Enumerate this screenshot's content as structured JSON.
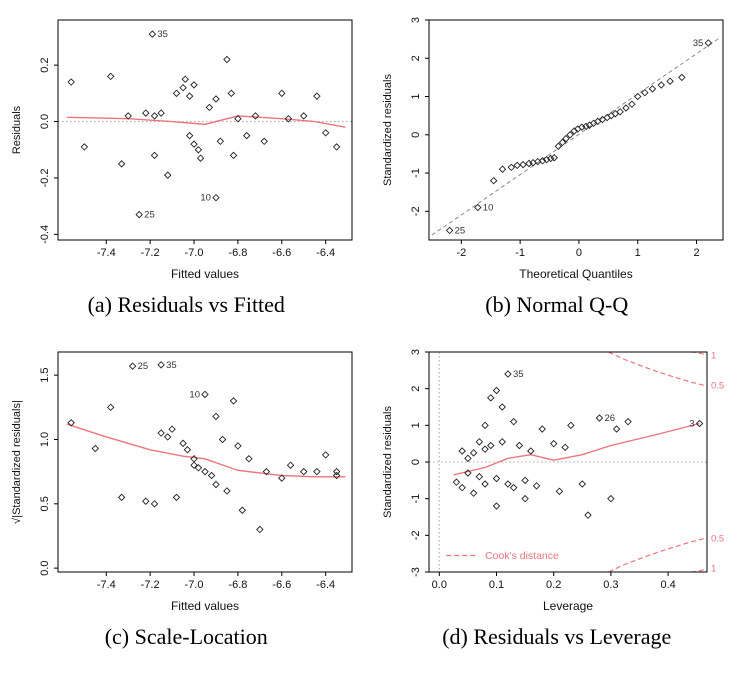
{
  "figure": {
    "captions": {
      "a": "(a) Residuals vs Fitted",
      "b": "(b) Normal Q-Q",
      "c": "(c) Scale-Location",
      "d": "(d) Residuals vs Leverage"
    }
  },
  "colors": {
    "accent": "#ee7580",
    "dotted": "#aaaaaa",
    "point": "#222222",
    "reference": "#8a8a8a"
  },
  "chart_data": [
    {
      "id": "a",
      "type": "scatter",
      "title": "Residuals vs Fitted",
      "xlabel": "Fitted values",
      "ylabel": "Residuals",
      "xlim": [
        -7.62,
        -6.28
      ],
      "ylim": [
        -0.42,
        0.36
      ],
      "xticks": {
        "values": [
          -7.4,
          -7.2,
          -7.0,
          -6.8,
          -6.6,
          -6.4
        ],
        "labels": [
          "-7.4",
          "-7.2",
          "-7.0",
          "-6.8",
          "-6.6",
          "-6.4"
        ]
      },
      "yticks": {
        "values": [
          -0.4,
          -0.2,
          0.0,
          0.2
        ],
        "labels": [
          "-0.4",
          "-0.2",
          "0.0",
          "0.2"
        ]
      },
      "zero_h": 0,
      "points": [
        [
          -7.56,
          0.14
        ],
        [
          -7.5,
          -0.09
        ],
        [
          -7.38,
          0.16
        ],
        [
          -7.33,
          -0.15
        ],
        [
          -7.3,
          0.02
        ],
        [
          -7.22,
          0.03
        ],
        [
          -7.18,
          0.02
        ],
        [
          -7.15,
          0.03
        ],
        [
          -7.18,
          -0.12
        ],
        [
          -7.12,
          -0.19
        ],
        [
          -7.08,
          0.1
        ],
        [
          -7.05,
          0.12
        ],
        [
          -7.04,
          0.15
        ],
        [
          -7.02,
          0.09
        ],
        [
          -7.0,
          0.13
        ],
        [
          -7.02,
          -0.05
        ],
        [
          -7.0,
          -0.08
        ],
        [
          -6.98,
          -0.1
        ],
        [
          -6.97,
          -0.13
        ],
        [
          -6.93,
          0.05
        ],
        [
          -6.9,
          0.08
        ],
        [
          -6.88,
          -0.07
        ],
        [
          -6.85,
          0.22
        ],
        [
          -6.83,
          0.1
        ],
        [
          -6.82,
          -0.12
        ],
        [
          -6.8,
          0.01
        ],
        [
          -6.76,
          -0.05
        ],
        [
          -6.72,
          0.02
        ],
        [
          -6.68,
          -0.07
        ],
        [
          -6.6,
          0.1
        ],
        [
          -6.57,
          0.01
        ],
        [
          -6.5,
          0.02
        ],
        [
          -6.44,
          0.09
        ],
        [
          -6.4,
          -0.04
        ],
        [
          -6.35,
          -0.09
        ]
      ],
      "labeled": [
        {
          "label": "35",
          "x": -7.19,
          "y": 0.31,
          "side": "right"
        },
        {
          "label": "25",
          "x": -7.25,
          "y": -0.33,
          "side": "right"
        },
        {
          "label": "10",
          "x": -6.9,
          "y": -0.27,
          "side": "left"
        }
      ],
      "smoother": [
        [
          -7.58,
          0.015
        ],
        [
          -7.3,
          0.01
        ],
        [
          -7.1,
          0.0
        ],
        [
          -6.95,
          -0.01
        ],
        [
          -6.8,
          0.02
        ],
        [
          -6.6,
          0.01
        ],
        [
          -6.45,
          0.0
        ],
        [
          -6.31,
          -0.02
        ]
      ]
    },
    {
      "id": "b",
      "type": "scatter",
      "title": "Normal Q-Q",
      "xlabel": "Theoretical Quantiles",
      "ylabel": "Standardized residuals",
      "xlim": [
        -2.55,
        2.45
      ],
      "ylim": [
        -2.75,
        3.0
      ],
      "xticks": {
        "values": [
          -2,
          -1,
          0,
          1,
          2
        ],
        "labels": [
          "-2",
          "-1",
          "0",
          "1",
          "2"
        ]
      },
      "yticks": {
        "values": [
          -2,
          -1,
          0,
          1,
          2,
          3
        ],
        "labels": [
          "-2",
          "-1",
          "0",
          "1",
          "2",
          "3"
        ]
      },
      "ref_line": [
        [
          -2.5,
          -2.62
        ],
        [
          2.38,
          2.52
        ]
      ],
      "points": [
        [
          -1.45,
          -1.2
        ],
        [
          -1.3,
          -0.9
        ],
        [
          -1.15,
          -0.85
        ],
        [
          -1.05,
          -0.8
        ],
        [
          -0.95,
          -0.78
        ],
        [
          -0.85,
          -0.75
        ],
        [
          -0.78,
          -0.73
        ],
        [
          -0.7,
          -0.7
        ],
        [
          -0.62,
          -0.68
        ],
        [
          -0.55,
          -0.65
        ],
        [
          -0.48,
          -0.62
        ],
        [
          -0.42,
          -0.6
        ],
        [
          -0.35,
          -0.3
        ],
        [
          -0.28,
          -0.2
        ],
        [
          -0.22,
          -0.1
        ],
        [
          -0.15,
          0.0
        ],
        [
          -0.08,
          0.1
        ],
        [
          -0.02,
          0.15
        ],
        [
          0.05,
          0.2
        ],
        [
          0.12,
          0.22
        ],
        [
          0.18,
          0.25
        ],
        [
          0.25,
          0.3
        ],
        [
          0.32,
          0.35
        ],
        [
          0.4,
          0.4
        ],
        [
          0.48,
          0.45
        ],
        [
          0.55,
          0.5
        ],
        [
          0.62,
          0.55
        ],
        [
          0.7,
          0.6
        ],
        [
          0.8,
          0.7
        ],
        [
          0.9,
          0.8
        ],
        [
          1.0,
          1.0
        ],
        [
          1.12,
          1.1
        ],
        [
          1.25,
          1.2
        ],
        [
          1.4,
          1.3
        ],
        [
          1.55,
          1.4
        ],
        [
          1.75,
          1.5
        ]
      ],
      "labeled": [
        {
          "label": "25",
          "x": -2.2,
          "y": -2.5,
          "side": "right"
        },
        {
          "label": "10",
          "x": -1.72,
          "y": -1.9,
          "side": "right"
        },
        {
          "label": "35",
          "x": 2.2,
          "y": 2.4,
          "side": "left"
        }
      ]
    },
    {
      "id": "c",
      "type": "scatter",
      "title": "Scale-Location",
      "xlabel": "Fitted values",
      "ylabel": "√|Standardized residuals|",
      "xlim": [
        -7.62,
        -6.28
      ],
      "ylim": [
        -0.03,
        1.68
      ],
      "xticks": {
        "values": [
          -7.4,
          -7.2,
          -7.0,
          -6.8,
          -6.6,
          -6.4
        ],
        "labels": [
          "-7.4",
          "-7.2",
          "-7.0",
          "-6.8",
          "-6.6",
          "-6.4"
        ]
      },
      "yticks": {
        "values": [
          0.0,
          0.5,
          1.0,
          1.5
        ],
        "labels": [
          "0.0",
          "0.5",
          "1.0",
          "1.5"
        ]
      },
      "points": [
        [
          -7.56,
          1.13
        ],
        [
          -7.45,
          0.93
        ],
        [
          -7.38,
          1.25
        ],
        [
          -7.33,
          0.55
        ],
        [
          -7.22,
          0.52
        ],
        [
          -7.18,
          0.5
        ],
        [
          -7.15,
          1.05
        ],
        [
          -7.12,
          1.02
        ],
        [
          -7.1,
          1.08
        ],
        [
          -7.08,
          0.55
        ],
        [
          -7.05,
          0.97
        ],
        [
          -7.03,
          0.92
        ],
        [
          -7.0,
          0.85
        ],
        [
          -7.0,
          0.8
        ],
        [
          -6.98,
          0.78
        ],
        [
          -6.95,
          0.75
        ],
        [
          -6.92,
          0.72
        ],
        [
          -6.9,
          1.18
        ],
        [
          -6.9,
          0.65
        ],
        [
          -6.87,
          1.0
        ],
        [
          -6.85,
          0.6
        ],
        [
          -6.82,
          1.3
        ],
        [
          -6.8,
          0.95
        ],
        [
          -6.78,
          0.45
        ],
        [
          -6.75,
          0.85
        ],
        [
          -6.7,
          0.3
        ],
        [
          -6.67,
          0.75
        ],
        [
          -6.6,
          0.7
        ],
        [
          -6.56,
          0.8
        ],
        [
          -6.5,
          0.75
        ],
        [
          -6.44,
          0.75
        ],
        [
          -6.4,
          0.88
        ],
        [
          -6.35,
          0.75
        ],
        [
          -6.35,
          0.72
        ]
      ],
      "labeled": [
        {
          "label": "25",
          "x": -7.28,
          "y": 1.57,
          "side": "right"
        },
        {
          "label": "35",
          "x": -7.15,
          "y": 1.58,
          "side": "right"
        },
        {
          "label": "10",
          "x": -6.95,
          "y": 1.35,
          "side": "left"
        }
      ],
      "smoother": [
        [
          -7.58,
          1.12
        ],
        [
          -7.4,
          1.02
        ],
        [
          -7.2,
          0.92
        ],
        [
          -7.05,
          0.87
        ],
        [
          -6.95,
          0.85
        ],
        [
          -6.8,
          0.76
        ],
        [
          -6.6,
          0.72
        ],
        [
          -6.45,
          0.71
        ],
        [
          -6.31,
          0.71
        ]
      ]
    },
    {
      "id": "d",
      "type": "scatter",
      "title": "Residuals vs Leverage",
      "xlabel": "Leverage",
      "ylabel": "Standardized residuals",
      "xlim": [
        -0.018,
        0.468
      ],
      "ylim": [
        -3.0,
        3.0
      ],
      "xticks": {
        "values": [
          0.0,
          0.1,
          0.2,
          0.3,
          0.4
        ],
        "labels": [
          "0.0",
          "0.1",
          "0.2",
          "0.3",
          "0.4"
        ]
      },
      "yticks": {
        "values": [
          -3,
          -2,
          -1,
          0,
          1,
          2,
          3
        ],
        "labels": [
          "-3",
          "-2",
          "-1",
          "0",
          "1",
          "2",
          "3"
        ]
      },
      "zero_h": 0,
      "zero_v": 0,
      "points": [
        [
          0.03,
          -0.55
        ],
        [
          0.04,
          0.3
        ],
        [
          0.04,
          -0.7
        ],
        [
          0.05,
          0.1
        ],
        [
          0.05,
          -0.3
        ],
        [
          0.06,
          0.25
        ],
        [
          0.06,
          -0.85
        ],
        [
          0.07,
          0.55
        ],
        [
          0.07,
          -0.4
        ],
        [
          0.08,
          1.0
        ],
        [
          0.08,
          0.35
        ],
        [
          0.08,
          -0.6
        ],
        [
          0.09,
          1.75
        ],
        [
          0.09,
          0.45
        ],
        [
          0.1,
          1.95
        ],
        [
          0.1,
          -0.45
        ],
        [
          0.1,
          -1.2
        ],
        [
          0.11,
          1.5
        ],
        [
          0.11,
          0.55
        ],
        [
          0.12,
          -0.6
        ],
        [
          0.13,
          1.1
        ],
        [
          0.13,
          -0.7
        ],
        [
          0.14,
          0.45
        ],
        [
          0.15,
          -0.5
        ],
        [
          0.15,
          -1.0
        ],
        [
          0.16,
          0.3
        ],
        [
          0.17,
          -0.65
        ],
        [
          0.18,
          0.9
        ],
        [
          0.2,
          0.5
        ],
        [
          0.21,
          -0.8
        ],
        [
          0.22,
          0.4
        ],
        [
          0.23,
          1.0
        ],
        [
          0.25,
          -0.6
        ],
        [
          0.26,
          -1.45
        ],
        [
          0.3,
          -1.0
        ],
        [
          0.31,
          0.9
        ],
        [
          0.33,
          1.1
        ]
      ],
      "labeled": [
        {
          "label": "35",
          "x": 0.12,
          "y": 2.4,
          "side": "right"
        },
        {
          "label": "26",
          "x": 0.28,
          "y": 1.2,
          "side": "right"
        },
        {
          "label": "3",
          "x": 0.455,
          "y": 1.05,
          "side": "left"
        }
      ],
      "smoother": [
        [
          0.025,
          -0.35
        ],
        [
          0.08,
          -0.15
        ],
        [
          0.12,
          0.1
        ],
        [
          0.16,
          0.2
        ],
        [
          0.2,
          0.05
        ],
        [
          0.25,
          0.2
        ],
        [
          0.3,
          0.45
        ],
        [
          0.38,
          0.75
        ],
        [
          0.455,
          1.05
        ]
      ],
      "cook": {
        "legend": {
          "label": "Cook's distance",
          "x": 0.08,
          "y": -2.55,
          "line": [
            0.012,
            0.065
          ]
        },
        "contours": [
          {
            "label": "1",
            "label_y": 2.9,
            "pts": [
              [
                0.44,
                3.0
              ],
              [
                0.45,
                2.99
              ],
              [
                0.465,
                2.93
              ]
            ]
          },
          {
            "label": "0.5",
            "label_y": 2.08,
            "pts": [
              [
                0.296,
                3.0
              ],
              [
                0.32,
                2.82
              ],
              [
                0.35,
                2.64
              ],
              [
                0.38,
                2.47
              ],
              [
                0.41,
                2.32
              ],
              [
                0.44,
                2.18
              ],
              [
                0.465,
                2.08
              ]
            ]
          },
          {
            "label": "0.5",
            "label_y": -2.08,
            "pts": [
              [
                0.296,
                -3.0
              ],
              [
                0.32,
                -2.82
              ],
              [
                0.35,
                -2.64
              ],
              [
                0.38,
                -2.47
              ],
              [
                0.41,
                -2.32
              ],
              [
                0.44,
                -2.18
              ],
              [
                0.465,
                -2.08
              ]
            ]
          },
          {
            "label": "1",
            "label_y": -2.9,
            "pts": [
              [
                0.44,
                -3.0
              ],
              [
                0.45,
                -2.99
              ],
              [
                0.465,
                -2.93
              ]
            ]
          }
        ]
      }
    }
  ]
}
